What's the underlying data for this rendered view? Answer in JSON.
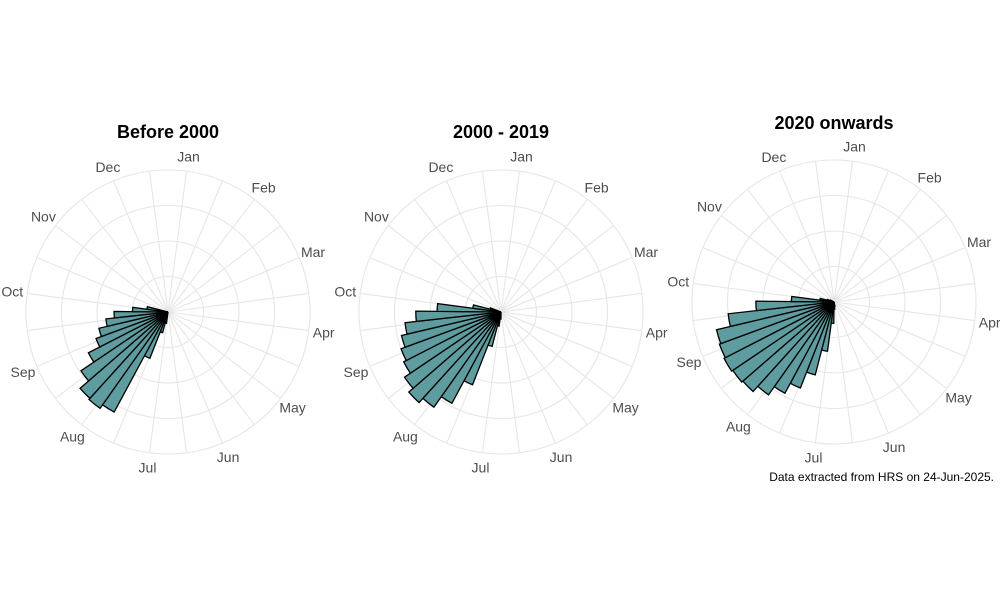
{
  "caption": "Data extracted from HRS on 24-Jun-2025.",
  "colors": {
    "bar_fill": "#5e9c9f",
    "bar_stroke": "#000000",
    "grid": "#e6e6e6"
  },
  "chart_data": [
    {
      "type": "polar-bar",
      "title": "Before 2000",
      "month_labels": [
        "Jan",
        "Feb",
        "Mar",
        "Apr",
        "May",
        "Jun",
        "Jul",
        "Aug",
        "Sep",
        "Oct",
        "Nov",
        "Dec"
      ],
      "bar_weeks": [
        27,
        28,
        29,
        30,
        31,
        32,
        33,
        34,
        35,
        36,
        37,
        38,
        39,
        40
      ],
      "values": [
        0.8,
        1.5,
        3.5,
        8,
        8.3,
        8.2,
        7.4,
        6.3,
        5.4,
        5,
        4.4,
        3.8,
        2.5,
        1.5
      ],
      "rmax": 10
    },
    {
      "type": "polar-bar",
      "title": "2000 - 2019",
      "month_labels": [
        "Jan",
        "Feb",
        "Mar",
        "Apr",
        "May",
        "Jun",
        "Jul",
        "Aug",
        "Sep",
        "Oct",
        "Nov",
        "Dec"
      ],
      "bar_weeks": [
        26,
        27,
        28,
        29,
        30,
        31,
        32,
        33,
        34,
        35,
        36,
        37,
        38,
        39,
        40,
        41
      ],
      "values": [
        0.5,
        1,
        2.5,
        5.5,
        7.3,
        8.2,
        8.6,
        8.2,
        7.7,
        7.5,
        7.2,
        6.8,
        6,
        4.5,
        2,
        0.8
      ],
      "rmax": 10
    },
    {
      "type": "polar-bar",
      "title": "2020 onwards",
      "month_labels": [
        "Jan",
        "Feb",
        "Mar",
        "Apr",
        "May",
        "Jun",
        "Jul",
        "Aug",
        "Sep",
        "Oct",
        "Nov",
        "Dec"
      ],
      "bar_weeks": [
        24,
        25,
        26,
        27,
        28,
        29,
        30,
        31,
        32,
        33,
        34,
        35,
        36,
        37,
        38,
        39,
        40,
        41,
        42
      ],
      "values": [
        0.3,
        0.5,
        1.5,
        3.5,
        5.3,
        6.5,
        7.3,
        8,
        8.5,
        8.6,
        8.7,
        8.6,
        8.5,
        7.5,
        5.5,
        3,
        1,
        0.5,
        0.3
      ],
      "rmax": 10
    }
  ]
}
